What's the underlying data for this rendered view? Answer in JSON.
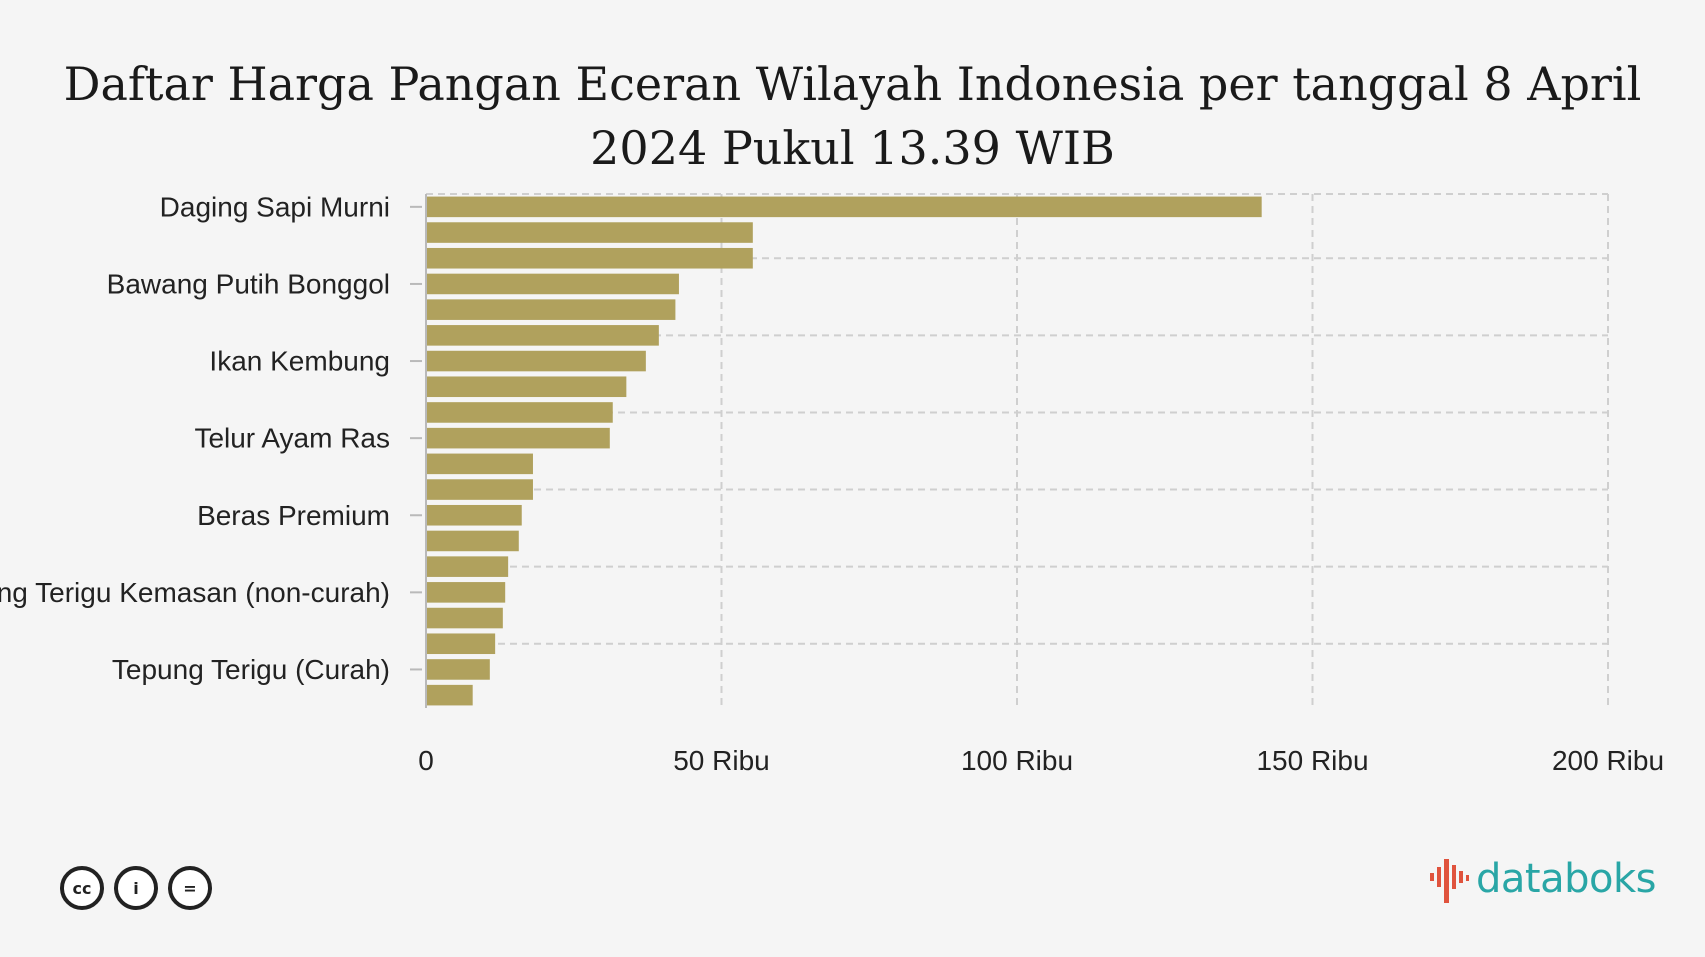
{
  "chart_data": {
    "type": "bar",
    "orientation": "horizontal",
    "title_lines": [
      "Daftar Harga Pangan Eceran Wilayah Indonesia per tanggal 8 April",
      "2024 Pukul 13.39 WIB"
    ],
    "category_labels": [
      {
        "text": "Daging Sapi Murni",
        "bar_index": 0
      },
      {
        "text": "Bawang Putih Bonggol",
        "bar_index": 3
      },
      {
        "text": "Ikan Kembung",
        "bar_index": 6
      },
      {
        "text": "Telur Ayam Ras",
        "bar_index": 9
      },
      {
        "text": "Beras Premium",
        "bar_index": 12
      },
      {
        "text": "Tepung Terigu Kemasan (non-curah)",
        "bar_index": 15
      },
      {
        "text": "Tepung Terigu (Curah)",
        "bar_index": 18
      }
    ],
    "values": [
      141400,
      55300,
      55300,
      42800,
      42200,
      39400,
      37200,
      33900,
      31600,
      31100,
      18100,
      18100,
      16200,
      15700,
      13900,
      13400,
      13000,
      11700,
      10800,
      7900
    ],
    "xlim": [
      0,
      200000
    ],
    "xticks": [
      0,
      50000,
      100000,
      150000,
      200000
    ],
    "xtick_labels": [
      "0",
      "50 Ribu",
      "100 Ribu",
      "150 Ribu",
      "200 Ribu"
    ],
    "xlabel": "",
    "ylabel": "",
    "grid": true,
    "legend": "none",
    "bar_color": "#b0a15d"
  },
  "footer": {
    "license_icons": [
      "cc-icon",
      "by-icon",
      "nd-icon"
    ],
    "license_glyphs": [
      "cc",
      "i",
      "="
    ],
    "brand": "databoks",
    "brand_colors": [
      "#e0533d",
      "#29a6a6"
    ]
  }
}
